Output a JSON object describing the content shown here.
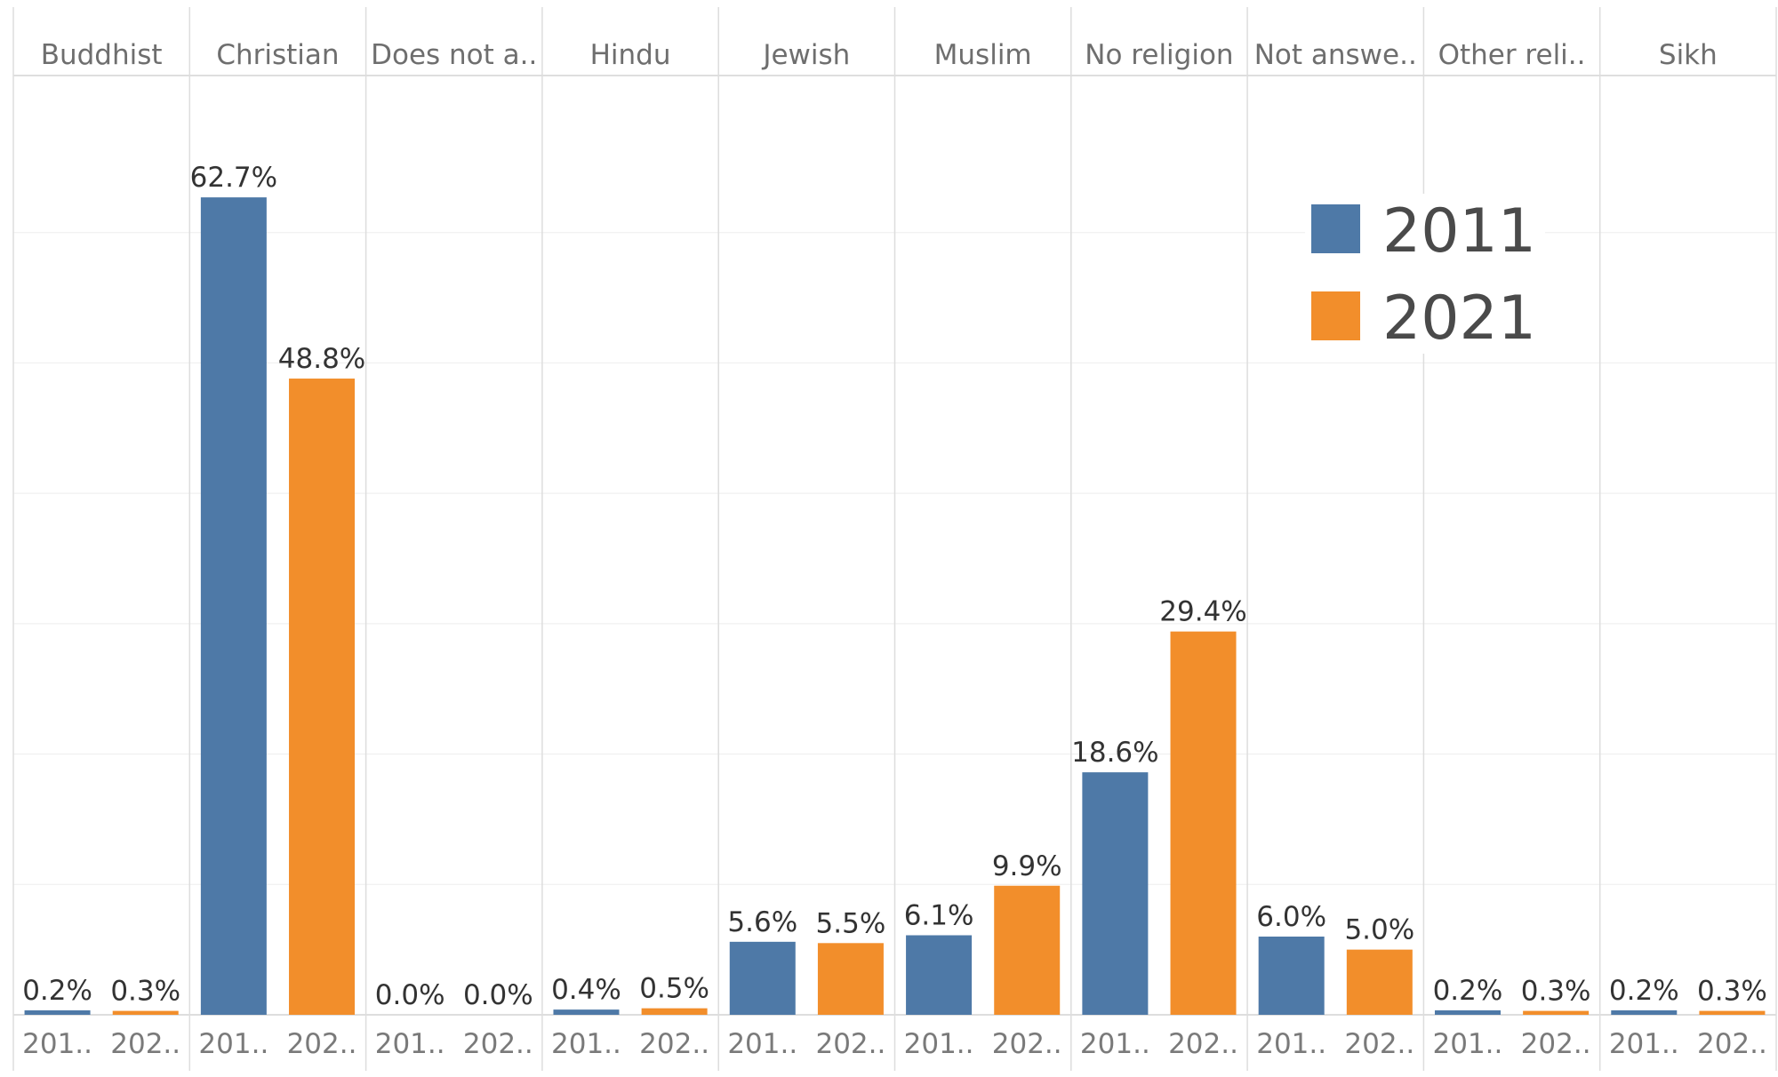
{
  "chart_data": {
    "type": "bar",
    "categories": [
      "Buddhist",
      "Christian",
      "Does not a..",
      "Hindu",
      "Jewish",
      "Muslim",
      "No religion",
      "Not answe..",
      "Other reli..",
      "Sikh"
    ],
    "x_tick_labels": [
      "201..",
      "202.."
    ],
    "series": [
      {
        "name": "2011",
        "color": "#4e79a7",
        "values": [
          0.2,
          62.7,
          0.0,
          0.4,
          5.6,
          6.1,
          18.6,
          6.0,
          0.2,
          0.2
        ],
        "labels": [
          "0.2%",
          "62.7%",
          "0.0%",
          "0.4%",
          "5.6%",
          "6.1%",
          "18.6%",
          "6.0%",
          "0.2%",
          "0.2%"
        ]
      },
      {
        "name": "2021",
        "color": "#f28e2b",
        "values": [
          0.3,
          48.8,
          0.0,
          0.5,
          5.5,
          9.9,
          29.4,
          5.0,
          0.3,
          0.3
        ],
        "labels": [
          "0.3%",
          "48.8%",
          "0.0%",
          "0.5%",
          "5.5%",
          "9.9%",
          "29.4%",
          "5.0%",
          "0.3%",
          "0.3%"
        ]
      }
    ],
    "ylim": [
      0,
      70
    ],
    "grid": true,
    "legend": {
      "placement": "top-right",
      "entries": [
        {
          "label": "2011",
          "color": "#4e79a7"
        },
        {
          "label": "2021",
          "color": "#f28e2b"
        }
      ]
    }
  }
}
